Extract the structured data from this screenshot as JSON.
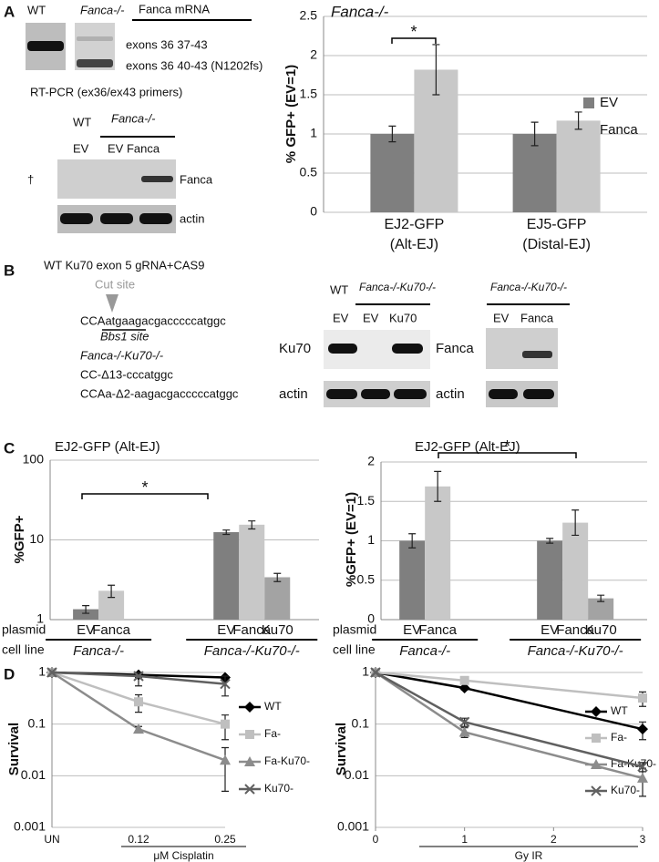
{
  "panel_labels": [
    "A",
    "B",
    "C",
    "D"
  ],
  "gels": {
    "rtpcr": {
      "lanes": [
        "WT",
        "Fanca-/-"
      ],
      "title": "Fanca mRNA",
      "bands": [
        "exons 36 37-43",
        "exons 36 40-43 (N1202fs)"
      ],
      "caption": "RT-PCR (ex36/ex43 primers)"
    },
    "blot_a": {
      "header": [
        "WT",
        "Fanca-/-"
      ],
      "lanes": [
        "EV",
        "EV Fanca"
      ],
      "marker": "†",
      "rows": [
        "Fanca",
        "actin"
      ]
    },
    "crispr": {
      "title": "WT Ku70 exon 5 gRNA+CAS9",
      "cut": "Cut site",
      "sequence": "CCAatgaagacgacccccatggc",
      "site": "Bbs1 site",
      "genotype": "Fanca-/-Ku70-/-",
      "alleles": [
        "CC-Δ13-cccatggc",
        "CCAa-Δ2-aagacgacccccatggc"
      ]
    },
    "blot_b1": {
      "header": [
        "WT",
        "Fanca-/-Ku70-/-"
      ],
      "lanes": [
        "EV",
        "EV",
        "Ku70"
      ],
      "rows": [
        "Ku70",
        "actin"
      ]
    },
    "blot_b2": {
      "header": "Fanca-/-Ku70-/-",
      "lanes": [
        "EV",
        "Fanca"
      ],
      "rows": [
        "Fanca",
        "actin"
      ]
    }
  },
  "chart_data": [
    {
      "type": "bar",
      "title": "Fanca-/-",
      "ylabel": "% GFP+ (EV=1)",
      "categories": [
        "EJ2-GFP",
        "EJ5-GFP"
      ],
      "category_sublabels": [
        "(Alt-EJ)",
        "(Distal-EJ)"
      ],
      "series": [
        {
          "name": "EV",
          "color": "#7f7f7f",
          "values": [
            1,
            1
          ],
          "errors": [
            0.1,
            0.15
          ]
        },
        {
          "name": "Fanca",
          "color": "#c8c8c8",
          "values": [
            1.82,
            1.17
          ],
          "errors": [
            0.32,
            0.11
          ]
        }
      ],
      "ylim": [
        0,
        2.5
      ],
      "yticks": [
        0,
        0.5,
        1,
        1.5,
        2,
        2.5
      ],
      "grid": true,
      "legend": "right",
      "significance": "*"
    },
    {
      "type": "bar",
      "title": "EJ2-GFP (Alt-EJ)",
      "ylabel": "%GFP+",
      "log_y": true,
      "row_labels": [
        "plasmid",
        "cell line"
      ],
      "groups": [
        {
          "cell_line": "Fanca-/-",
          "categories": [
            "EV",
            "Fanca"
          ],
          "values": [
            1.35,
            2.3
          ],
          "errors": [
            0.15,
            0.4
          ],
          "colors": [
            "#7f7f7f",
            "#c8c8c8"
          ]
        },
        {
          "cell_line": "Fanca-/-Ku70-/-",
          "categories": [
            "EV",
            "Fanca",
            "Ku70"
          ],
          "values": [
            12.5,
            15.5,
            3.4
          ],
          "errors": [
            0.8,
            1.8,
            0.4
          ],
          "colors": [
            "#7f7f7f",
            "#c8c8c8",
            "#a3a3a3"
          ]
        }
      ],
      "ylim": [
        1,
        100
      ],
      "yticks": [
        1,
        10,
        100
      ],
      "grid": true,
      "significance": "*"
    },
    {
      "type": "bar",
      "title": "EJ2-GFP (Alt-EJ)",
      "ylabel": "%GFP+ (EV=1)",
      "row_labels": [
        "plasmid",
        "cell line"
      ],
      "groups": [
        {
          "cell_line": "Fanca-/-",
          "categories": [
            "EV",
            "Fanca"
          ],
          "values": [
            1,
            1.69
          ],
          "errors": [
            0.09,
            0.19
          ],
          "colors": [
            "#7f7f7f",
            "#c8c8c8"
          ]
        },
        {
          "cell_line": "Fanca-/-Ku70-/-",
          "categories": [
            "EV",
            "Fanca",
            "Ku70"
          ],
          "values": [
            1,
            1.23,
            0.27
          ],
          "errors": [
            0.03,
            0.16,
            0.04
          ],
          "colors": [
            "#7f7f7f",
            "#c8c8c8",
            "#a3a3a3"
          ]
        }
      ],
      "ylim": [
        0,
        2
      ],
      "yticks": [
        0,
        0.5,
        1,
        1.5,
        2
      ],
      "grid": true,
      "significance": "*"
    },
    {
      "type": "line",
      "ylabel": "Survival",
      "xlabel": "μM Cisplatin",
      "log_y": true,
      "categories": [
        "UN",
        "0.12",
        "0.25"
      ],
      "series": [
        {
          "name": "WT",
          "color": "#000000",
          "marker": "diamond",
          "values": [
            1,
            0.9,
            0.8
          ],
          "errors": [
            null,
            0.1,
            0.05
          ]
        },
        {
          "name": "Fa-",
          "color": "#bfbfbf",
          "marker": "square",
          "values": [
            1,
            0.27,
            0.1
          ],
          "errors": [
            null,
            0.1,
            0.05
          ]
        },
        {
          "name": "Fa-Ku70-",
          "color": "#8c8c8c",
          "marker": "triangle",
          "values": [
            1,
            0.08,
            0.02
          ],
          "errors": [
            null,
            0.01,
            0.015
          ]
        },
        {
          "name": "Ku70-",
          "color": "#606060",
          "marker": "x",
          "values": [
            1,
            0.85,
            0.6
          ],
          "errors": [
            null,
            0.3,
            0.25
          ]
        }
      ],
      "ylim": [
        0.001,
        1
      ],
      "yticks": [
        0.001,
        0.01,
        0.1,
        1
      ],
      "grid": true,
      "legend": "right"
    },
    {
      "type": "line",
      "ylabel": "Survival",
      "xlabel": "Gy IR",
      "log_y": true,
      "x": [
        0,
        1,
        3
      ],
      "xlim": [
        0,
        3
      ],
      "xticks": [
        0,
        1,
        2,
        3
      ],
      "series": [
        {
          "name": "WT",
          "color": "#000000",
          "marker": "diamond",
          "values": [
            1,
            0.5,
            0.08
          ],
          "errors": [
            null,
            0.04,
            0.03
          ]
        },
        {
          "name": "Fa-",
          "color": "#bfbfbf",
          "marker": "square",
          "values": [
            1,
            0.7,
            0.32
          ],
          "errors": [
            null,
            0.1,
            0.1
          ]
        },
        {
          "name": "Fa-Ku70-",
          "color": "#8c8c8c",
          "marker": "triangle",
          "values": [
            1,
            0.07,
            0.009
          ],
          "errors": [
            null,
            0.015,
            0.005
          ]
        },
        {
          "name": "Ku70-",
          "color": "#606060",
          "marker": "x",
          "values": [
            1,
            0.11,
            0.015
          ],
          "errors": [
            null,
            0.02,
            0.003
          ]
        }
      ],
      "ylim": [
        0.001,
        1
      ],
      "yticks": [
        0.001,
        0.01,
        0.1,
        1
      ],
      "grid": true,
      "legend": "right"
    }
  ]
}
